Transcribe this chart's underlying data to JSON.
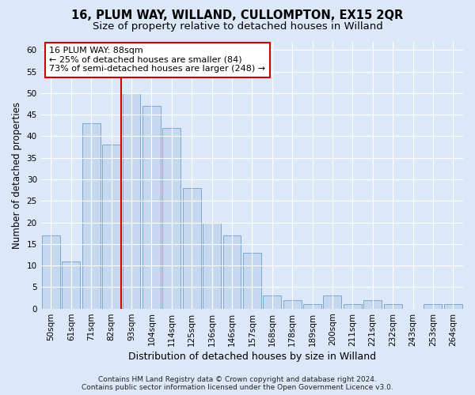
{
  "title1": "16, PLUM WAY, WILLAND, CULLOMPTON, EX15 2QR",
  "title2": "Size of property relative to detached houses in Willand",
  "xlabel": "Distribution of detached houses by size in Willand",
  "ylabel": "Number of detached properties",
  "categories": [
    "50sqm",
    "61sqm",
    "71sqm",
    "82sqm",
    "93sqm",
    "104sqm",
    "114sqm",
    "125sqm",
    "136sqm",
    "146sqm",
    "157sqm",
    "168sqm",
    "178sqm",
    "189sqm",
    "200sqm",
    "211sqm",
    "221sqm",
    "232sqm",
    "243sqm",
    "253sqm",
    "264sqm"
  ],
  "values": [
    17,
    11,
    43,
    38,
    50,
    47,
    42,
    28,
    20,
    17,
    13,
    3,
    2,
    1,
    3,
    1,
    2,
    1,
    0,
    1,
    1
  ],
  "bar_color": "#c5d8f0",
  "bar_edge_color": "#7aaad0",
  "vline_x": 3.5,
  "vline_color": "#cc0000",
  "annotation_line1": "16 PLUM WAY: 88sqm",
  "annotation_line2": "← 25% of detached houses are smaller (84)",
  "annotation_line3": "73% of semi-detached houses are larger (248) →",
  "annotation_box_facecolor": "#ffffff",
  "annotation_box_edgecolor": "#cc0000",
  "footer1": "Contains HM Land Registry data © Crown copyright and database right 2024.",
  "footer2": "Contains public sector information licensed under the Open Government Licence v3.0.",
  "ylim": [
    0,
    62
  ],
  "yticks": [
    0,
    5,
    10,
    15,
    20,
    25,
    30,
    35,
    40,
    45,
    50,
    55,
    60
  ],
  "bg_color": "#dce8f8",
  "plot_bg_color": "#dce8f8",
  "grid_color": "#ffffff",
  "title1_fontsize": 10.5,
  "title2_fontsize": 9.5,
  "xlabel_fontsize": 9,
  "ylabel_fontsize": 8.5,
  "tick_fontsize": 7.5,
  "annot_fontsize": 8,
  "footer_fontsize": 6.5
}
